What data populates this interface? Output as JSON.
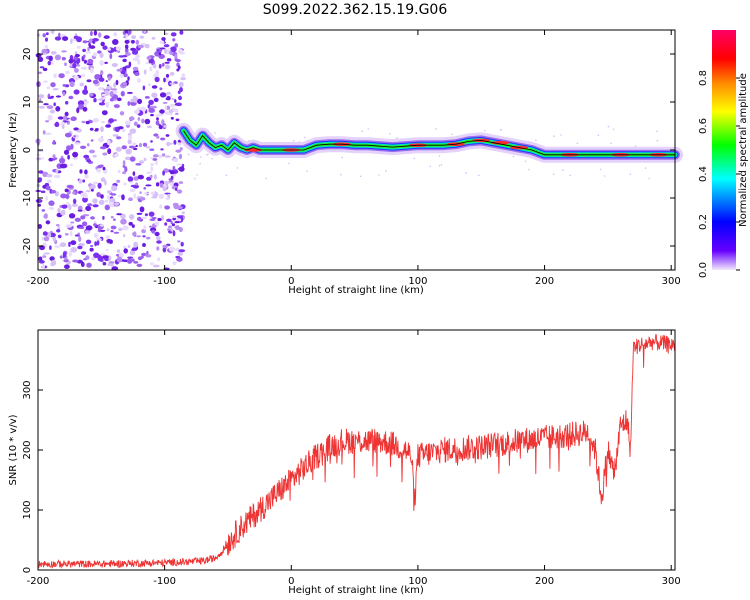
{
  "title": "S099.2022.362.15.19.G06",
  "colors": {
    "snr_line": "#ee3333",
    "noise_dots": "#7733ee",
    "ridge_line": "#000000",
    "colorbar": [
      "#f4e9fb",
      "#6600ff",
      "#0000ff",
      "#00ffff",
      "#00ff00",
      "#ffff00",
      "#ff8800",
      "#ff0000",
      "#ff0066"
    ]
  },
  "chart_data": [
    {
      "type": "heatmap",
      "title": "S099.2022.362.15.19.G06",
      "xlabel": "Height of straight line (km)",
      "ylabel": "Frequency (Hz)",
      "xlim": [
        -200,
        303
      ],
      "ylim": [
        -25,
        25
      ],
      "x_ticks": [
        -200,
        -100,
        0,
        100,
        200,
        300
      ],
      "y_ticks": [
        -20,
        -10,
        0,
        10,
        20
      ],
      "noise_region_x": [
        -200,
        -85
      ],
      "ridge": {
        "x": [
          -85,
          -80,
          -75,
          -70,
          -65,
          -60,
          -55,
          -50,
          -45,
          -40,
          -35,
          -30,
          -25,
          -20,
          -10,
          0,
          10,
          20,
          30,
          40,
          50,
          60,
          70,
          80,
          90,
          100,
          110,
          120,
          130,
          140,
          150,
          160,
          170,
          180,
          190,
          195,
          200,
          220,
          240,
          260,
          280,
          303
        ],
        "y": [
          4,
          2,
          1,
          3,
          1.5,
          0.5,
          1,
          0,
          1.5,
          0.5,
          0,
          0.5,
          0,
          0,
          0,
          0,
          0,
          1,
          1.2,
          1.2,
          1,
          1,
          0.8,
          0.6,
          0.8,
          1,
          1,
          1,
          1.2,
          1.8,
          2,
          1.5,
          1,
          0.5,
          0,
          -0.5,
          -1,
          -1,
          -1,
          -1,
          -1,
          -1
        ]
      },
      "colorbar": {
        "label": "Normalized spectral amplitude",
        "ticks": [
          0.0,
          0.2,
          0.4,
          0.6,
          0.8
        ],
        "range": [
          0,
          1
        ]
      }
    },
    {
      "type": "line",
      "xlabel": "Height of straight line (km)",
      "ylabel": "SNR (10 * v/v)",
      "xlim": [
        -200,
        303
      ],
      "ylim": [
        0,
        400
      ],
      "x_ticks": [
        -200,
        -100,
        0,
        100,
        200,
        300
      ],
      "y_ticks": [
        0,
        100,
        200,
        300
      ],
      "series": [
        {
          "x": [
            -200,
            -150,
            -100,
            -70,
            -60,
            -55,
            -50,
            -40,
            -30,
            -20,
            -10,
            0,
            10,
            20,
            30,
            40,
            50,
            60,
            70,
            80,
            90,
            95,
            97,
            100,
            110,
            120,
            150,
            180,
            200,
            220,
            235,
            240,
            245,
            250,
            255,
            260,
            265,
            268,
            270,
            275,
            285,
            303
          ],
          "y": [
            10,
            10,
            12,
            15,
            20,
            30,
            45,
            70,
            90,
            110,
            130,
            150,
            170,
            190,
            205,
            215,
            215,
            215,
            215,
            210,
            200,
            190,
            110,
            190,
            195,
            200,
            205,
            215,
            220,
            225,
            230,
            200,
            120,
            200,
            160,
            240,
            250,
            200,
            370,
            375,
            380,
            375
          ]
        }
      ]
    }
  ]
}
